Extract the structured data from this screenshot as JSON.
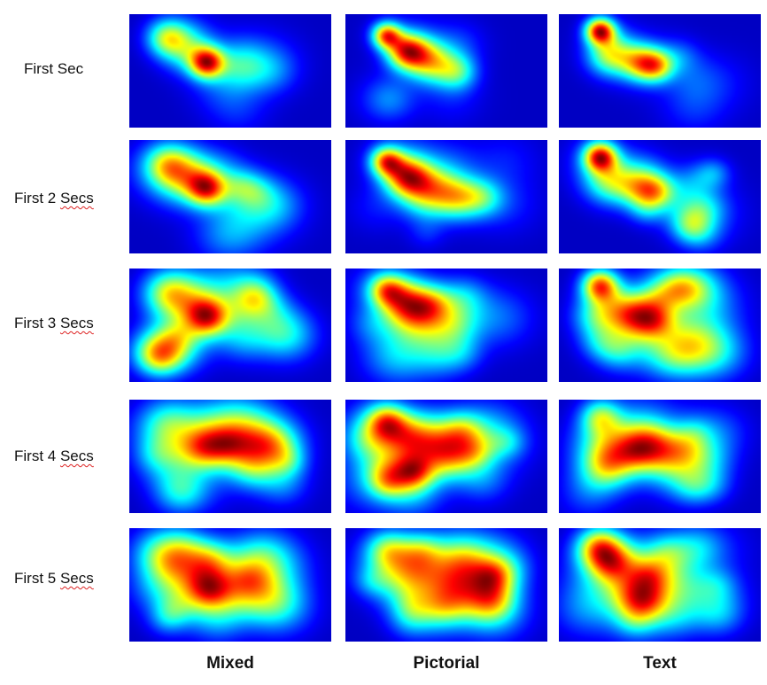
{
  "chart_data": {
    "type": "heatmap",
    "title": "",
    "columns": [
      "Mixed",
      "Pictorial",
      "Text"
    ],
    "rows": [
      {
        "prefix": "First",
        "suffix": "Sec"
      },
      {
        "prefix": "First 2",
        "suffix": "Secs"
      },
      {
        "prefix": "First 3",
        "suffix": "Secs"
      },
      {
        "prefix": "First 4",
        "suffix": "Secs"
      },
      {
        "prefix": "First 5",
        "suffix": "Secs"
      }
    ],
    "colormap": [
      "#00008b",
      "#0000ff",
      "#0080ff",
      "#00ffff",
      "#80ff80",
      "#ffff00",
      "#ff8000",
      "#ff0000",
      "#800000"
    ],
    "hotspots": {
      "Mixed": [
        {
          "x": 0.18,
          "y": 0.2,
          "w": 0.45,
          "s": 0.07
        },
        {
          "x": 0.38,
          "y": 0.42,
          "w": 0.85,
          "s": 0.06
        },
        {
          "x": 0.28,
          "y": 0.3,
          "w": 0.35,
          "s": 0.09
        },
        {
          "x": 0.55,
          "y": 0.45,
          "w": 0.25,
          "s": 0.09
        }
      ],
      "Pictorial": [
        {
          "x": 0.2,
          "y": 0.18,
          "w": 0.8,
          "s": 0.05
        },
        {
          "x": 0.3,
          "y": 0.32,
          "w": 0.85,
          "s": 0.07
        },
        {
          "x": 0.42,
          "y": 0.42,
          "w": 0.55,
          "s": 0.08
        },
        {
          "x": 0.55,
          "y": 0.5,
          "w": 0.4,
          "s": 0.07
        }
      ],
      "Text": [
        {
          "x": 0.2,
          "y": 0.14,
          "w": 0.85,
          "s": 0.05
        },
        {
          "x": 0.25,
          "y": 0.35,
          "w": 0.5,
          "s": 0.08
        },
        {
          "x": 0.4,
          "y": 0.42,
          "w": 0.5,
          "s": 0.07
        },
        {
          "x": 0.48,
          "y": 0.45,
          "w": 0.45,
          "s": 0.06
        }
      ]
    }
  }
}
